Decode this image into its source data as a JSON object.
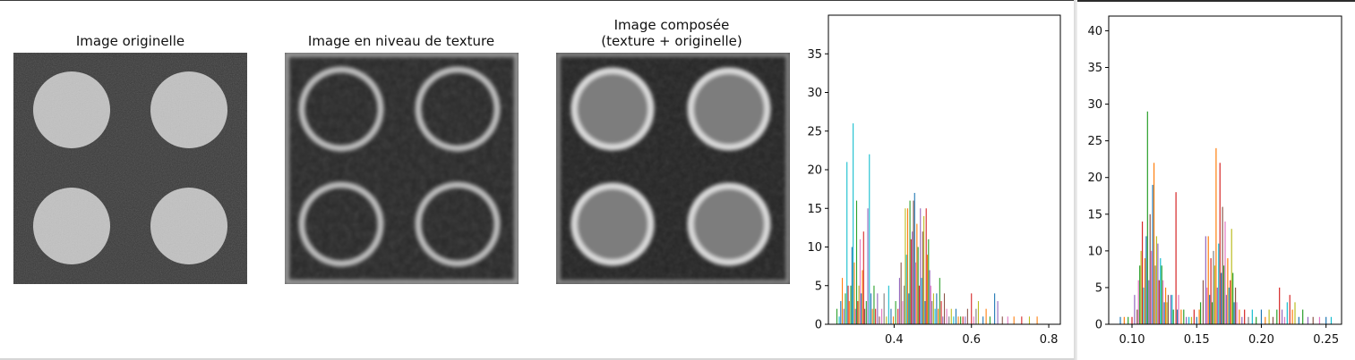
{
  "figure": {
    "panels": [
      {
        "title": "Image originelle"
      },
      {
        "title": "Image en niveau de texture"
      },
      {
        "title": "Image composée\n(texture + originelle)"
      }
    ]
  },
  "chart_data": [
    {
      "type": "bar",
      "xlim": [
        0.23,
        0.83
      ],
      "ylim": [
        0,
        40
      ],
      "x_ticks": [
        0.4,
        0.6,
        0.8
      ],
      "y_ticks": [
        0,
        5,
        10,
        15,
        20,
        25,
        30,
        35
      ],
      "grid": false,
      "bars": [
        {
          "x": 0.252,
          "h": 2,
          "c": "#2ca02c"
        },
        {
          "x": 0.258,
          "h": 1,
          "c": "#17becf"
        },
        {
          "x": 0.262,
          "h": 3,
          "c": "#1f77b4"
        },
        {
          "x": 0.266,
          "h": 6,
          "c": "#ff7f0e"
        },
        {
          "x": 0.27,
          "h": 2,
          "c": "#9467bd"
        },
        {
          "x": 0.274,
          "h": 4,
          "c": "#2ca02c"
        },
        {
          "x": 0.278,
          "h": 21,
          "c": "#17becf"
        },
        {
          "x": 0.281,
          "h": 5,
          "c": "#d62728"
        },
        {
          "x": 0.284,
          "h": 3,
          "c": "#ff7f0e"
        },
        {
          "x": 0.288,
          "h": 5,
          "c": "#2ca02c"
        },
        {
          "x": 0.291,
          "h": 10,
          "c": "#1f77b4"
        },
        {
          "x": 0.294,
          "h": 26,
          "c": "#17becf"
        },
        {
          "x": 0.297,
          "h": 8,
          "c": "#ff7f0e"
        },
        {
          "x": 0.3,
          "h": 2,
          "c": "#9467bd"
        },
        {
          "x": 0.303,
          "h": 16,
          "c": "#2ca02c"
        },
        {
          "x": 0.306,
          "h": 3,
          "c": "#d62728"
        },
        {
          "x": 0.309,
          "h": 5,
          "c": "#bcbd22"
        },
        {
          "x": 0.312,
          "h": 11,
          "c": "#e377c2"
        },
        {
          "x": 0.315,
          "h": 4,
          "c": "#1f77b4"
        },
        {
          "x": 0.318,
          "h": 7,
          "c": "#ff7f0e"
        },
        {
          "x": 0.321,
          "h": 12,
          "c": "#d62728"
        },
        {
          "x": 0.324,
          "h": 2,
          "c": "#8c564b"
        },
        {
          "x": 0.328,
          "h": 3,
          "c": "#2ca02c"
        },
        {
          "x": 0.332,
          "h": 15,
          "c": "#9467bd"
        },
        {
          "x": 0.336,
          "h": 22,
          "c": "#17becf"
        },
        {
          "x": 0.34,
          "h": 4,
          "c": "#1f77b4"
        },
        {
          "x": 0.344,
          "h": 2,
          "c": "#ff7f0e"
        },
        {
          "x": 0.348,
          "h": 5,
          "c": "#2ca02c"
        },
        {
          "x": 0.352,
          "h": 2,
          "c": "#d62728"
        },
        {
          "x": 0.357,
          "h": 4,
          "c": "#9467bd"
        },
        {
          "x": 0.362,
          "h": 1,
          "c": "#8c564b"
        },
        {
          "x": 0.368,
          "h": 2,
          "c": "#e377c2"
        },
        {
          "x": 0.374,
          "h": 4,
          "c": "#7f7f7f"
        },
        {
          "x": 0.38,
          "h": 1,
          "c": "#bcbd22"
        },
        {
          "x": 0.386,
          "h": 5,
          "c": "#17becf"
        },
        {
          "x": 0.392,
          "h": 2,
          "c": "#1f77b4"
        },
        {
          "x": 0.398,
          "h": 1,
          "c": "#ff7f0e"
        },
        {
          "x": 0.404,
          "h": 3,
          "c": "#2ca02c"
        },
        {
          "x": 0.41,
          "h": 2,
          "c": "#d62728"
        },
        {
          "x": 0.414,
          "h": 6,
          "c": "#9467bd"
        },
        {
          "x": 0.418,
          "h": 8,
          "c": "#8c564b"
        },
        {
          "x": 0.422,
          "h": 3,
          "c": "#e377c2"
        },
        {
          "x": 0.426,
          "h": 5,
          "c": "#7f7f7f"
        },
        {
          "x": 0.429,
          "h": 15,
          "c": "#bcbd22"
        },
        {
          "x": 0.432,
          "h": 9,
          "c": "#17becf"
        },
        {
          "x": 0.435,
          "h": 15,
          "c": "#ff7f0e"
        },
        {
          "x": 0.438,
          "h": 4,
          "c": "#1f77b4"
        },
        {
          "x": 0.441,
          "h": 16,
          "c": "#2ca02c"
        },
        {
          "x": 0.444,
          "h": 11,
          "c": "#d62728"
        },
        {
          "x": 0.447,
          "h": 12,
          "c": "#9467bd"
        },
        {
          "x": 0.45,
          "h": 16,
          "c": "#8c564b"
        },
        {
          "x": 0.453,
          "h": 17,
          "c": "#1f77b4"
        },
        {
          "x": 0.456,
          "h": 8,
          "c": "#e377c2"
        },
        {
          "x": 0.459,
          "h": 13,
          "c": "#ff7f0e"
        },
        {
          "x": 0.462,
          "h": 10,
          "c": "#2ca02c"
        },
        {
          "x": 0.465,
          "h": 5,
          "c": "#d62728"
        },
        {
          "x": 0.468,
          "h": 15,
          "c": "#9467bd"
        },
        {
          "x": 0.471,
          "h": 6,
          "c": "#17becf"
        },
        {
          "x": 0.474,
          "h": 12,
          "c": "#8c564b"
        },
        {
          "x": 0.477,
          "h": 14,
          "c": "#bcbd22"
        },
        {
          "x": 0.48,
          "h": 3,
          "c": "#1f77b4"
        },
        {
          "x": 0.483,
          "h": 15,
          "c": "#d62728"
        },
        {
          "x": 0.486,
          "h": 9,
          "c": "#ff7f0e"
        },
        {
          "x": 0.489,
          "h": 11,
          "c": "#2ca02c"
        },
        {
          "x": 0.492,
          "h": 7,
          "c": "#9467bd"
        },
        {
          "x": 0.495,
          "h": 5,
          "c": "#e377c2"
        },
        {
          "x": 0.498,
          "h": 3,
          "c": "#7f7f7f"
        },
        {
          "x": 0.502,
          "h": 4,
          "c": "#bcbd22"
        },
        {
          "x": 0.506,
          "h": 2,
          "c": "#17becf"
        },
        {
          "x": 0.51,
          "h": 4,
          "c": "#1f77b4"
        },
        {
          "x": 0.514,
          "h": 2,
          "c": "#ff7f0e"
        },
        {
          "x": 0.518,
          "h": 6,
          "c": "#2ca02c"
        },
        {
          "x": 0.522,
          "h": 3,
          "c": "#d62728"
        },
        {
          "x": 0.526,
          "h": 1,
          "c": "#9467bd"
        },
        {
          "x": 0.53,
          "h": 4,
          "c": "#8c564b"
        },
        {
          "x": 0.536,
          "h": 2,
          "c": "#e377c2"
        },
        {
          "x": 0.542,
          "h": 1,
          "c": "#7f7f7f"
        },
        {
          "x": 0.548,
          "h": 2,
          "c": "#bcbd22"
        },
        {
          "x": 0.554,
          "h": 1,
          "c": "#17becf"
        },
        {
          "x": 0.56,
          "h": 2,
          "c": "#1f77b4"
        },
        {
          "x": 0.566,
          "h": 1,
          "c": "#ff7f0e"
        },
        {
          "x": 0.572,
          "h": 1,
          "c": "#2ca02c"
        },
        {
          "x": 0.578,
          "h": 1,
          "c": "#d62728"
        },
        {
          "x": 0.584,
          "h": 1,
          "c": "#9467bd"
        },
        {
          "x": 0.59,
          "h": 2,
          "c": "#8c564b"
        },
        {
          "x": 0.6,
          "h": 4,
          "c": "#d62728"
        },
        {
          "x": 0.606,
          "h": 1,
          "c": "#e377c2"
        },
        {
          "x": 0.612,
          "h": 2,
          "c": "#7f7f7f"
        },
        {
          "x": 0.618,
          "h": 3,
          "c": "#bcbd22"
        },
        {
          "x": 0.63,
          "h": 1,
          "c": "#1f77b4"
        },
        {
          "x": 0.638,
          "h": 2,
          "c": "#ff7f0e"
        },
        {
          "x": 0.648,
          "h": 1,
          "c": "#2ca02c"
        },
        {
          "x": 0.66,
          "h": 4,
          "c": "#1f77b4"
        },
        {
          "x": 0.668,
          "h": 3,
          "c": "#9467bd"
        },
        {
          "x": 0.68,
          "h": 1,
          "c": "#8c564b"
        },
        {
          "x": 0.694,
          "h": 1,
          "c": "#e377c2"
        },
        {
          "x": 0.71,
          "h": 1,
          "c": "#ff7f0e"
        },
        {
          "x": 0.73,
          "h": 1,
          "c": "#d62728"
        },
        {
          "x": 0.75,
          "h": 1,
          "c": "#bcbd22"
        },
        {
          "x": 0.77,
          "h": 1,
          "c": "#ff7f0e"
        }
      ]
    },
    {
      "type": "bar",
      "xlim": [
        0.082,
        0.262
      ],
      "ylim": [
        0,
        42
      ],
      "x_ticks": [
        0.1,
        0.15,
        0.2,
        0.25
      ],
      "y_ticks": [
        0,
        5,
        10,
        15,
        20,
        25,
        30,
        35,
        40
      ],
      "grid": false,
      "bars": [
        {
          "x": 0.091,
          "h": 1,
          "c": "#1f77b4"
        },
        {
          "x": 0.094,
          "h": 1,
          "c": "#ff7f0e"
        },
        {
          "x": 0.097,
          "h": 1,
          "c": "#2ca02c"
        },
        {
          "x": 0.1,
          "h": 1,
          "c": "#d62728"
        },
        {
          "x": 0.102,
          "h": 4,
          "c": "#9467bd"
        },
        {
          "x": 0.104,
          "h": 2,
          "c": "#8c564b"
        },
        {
          "x": 0.105,
          "h": 6,
          "c": "#e377c2"
        },
        {
          "x": 0.106,
          "h": 8,
          "c": "#2ca02c"
        },
        {
          "x": 0.107,
          "h": 10,
          "c": "#bcbd22"
        },
        {
          "x": 0.108,
          "h": 14,
          "c": "#d62728"
        },
        {
          "x": 0.109,
          "h": 5,
          "c": "#17becf"
        },
        {
          "x": 0.11,
          "h": 9,
          "c": "#ff7f0e"
        },
        {
          "x": 0.111,
          "h": 12,
          "c": "#1f77b4"
        },
        {
          "x": 0.112,
          "h": 29,
          "c": "#2ca02c"
        },
        {
          "x": 0.113,
          "h": 6,
          "c": "#9467bd"
        },
        {
          "x": 0.114,
          "h": 15,
          "c": "#8c564b"
        },
        {
          "x": 0.115,
          "h": 10,
          "c": "#e377c2"
        },
        {
          "x": 0.116,
          "h": 19,
          "c": "#1f77b4"
        },
        {
          "x": 0.117,
          "h": 22,
          "c": "#ff7f0e"
        },
        {
          "x": 0.118,
          "h": 8,
          "c": "#7f7f7f"
        },
        {
          "x": 0.119,
          "h": 12,
          "c": "#bcbd22"
        },
        {
          "x": 0.12,
          "h": 11,
          "c": "#9467bd"
        },
        {
          "x": 0.121,
          "h": 6,
          "c": "#d62728"
        },
        {
          "x": 0.122,
          "h": 9,
          "c": "#17becf"
        },
        {
          "x": 0.123,
          "h": 8,
          "c": "#2ca02c"
        },
        {
          "x": 0.124,
          "h": 6,
          "c": "#e377c2"
        },
        {
          "x": 0.125,
          "h": 3,
          "c": "#1f77b4"
        },
        {
          "x": 0.126,
          "h": 5,
          "c": "#ff7f0e"
        },
        {
          "x": 0.127,
          "h": 3,
          "c": "#bcbd22"
        },
        {
          "x": 0.128,
          "h": 4,
          "c": "#8c564b"
        },
        {
          "x": 0.13,
          "h": 4,
          "c": "#9467bd"
        },
        {
          "x": 0.131,
          "h": 4,
          "c": "#17becf"
        },
        {
          "x": 0.132,
          "h": 2,
          "c": "#2ca02c"
        },
        {
          "x": 0.134,
          "h": 18,
          "c": "#d62728"
        },
        {
          "x": 0.135,
          "h": 2,
          "c": "#1f77b4"
        },
        {
          "x": 0.136,
          "h": 4,
          "c": "#e377c2"
        },
        {
          "x": 0.138,
          "h": 2,
          "c": "#ff7f0e"
        },
        {
          "x": 0.14,
          "h": 2,
          "c": "#2ca02c"
        },
        {
          "x": 0.142,
          "h": 1,
          "c": "#9467bd"
        },
        {
          "x": 0.144,
          "h": 1,
          "c": "#17becf"
        },
        {
          "x": 0.146,
          "h": 1,
          "c": "#bcbd22"
        },
        {
          "x": 0.148,
          "h": 2,
          "c": "#d62728"
        },
        {
          "x": 0.15,
          "h": 1,
          "c": "#1f77b4"
        },
        {
          "x": 0.152,
          "h": 2,
          "c": "#ff7f0e"
        },
        {
          "x": 0.153,
          "h": 3,
          "c": "#2ca02c"
        },
        {
          "x": 0.155,
          "h": 6,
          "c": "#8c564b"
        },
        {
          "x": 0.157,
          "h": 12,
          "c": "#9467bd"
        },
        {
          "x": 0.158,
          "h": 5,
          "c": "#e377c2"
        },
        {
          "x": 0.159,
          "h": 12,
          "c": "#ff7f0e"
        },
        {
          "x": 0.16,
          "h": 4,
          "c": "#1f77b4"
        },
        {
          "x": 0.161,
          "h": 9,
          "c": "#d62728"
        },
        {
          "x": 0.162,
          "h": 3,
          "c": "#2ca02c"
        },
        {
          "x": 0.163,
          "h": 10,
          "c": "#7f7f7f"
        },
        {
          "x": 0.164,
          "h": 8,
          "c": "#bcbd22"
        },
        {
          "x": 0.165,
          "h": 24,
          "c": "#ff7f0e"
        },
        {
          "x": 0.166,
          "h": 5,
          "c": "#9467bd"
        },
        {
          "x": 0.167,
          "h": 11,
          "c": "#17becf"
        },
        {
          "x": 0.168,
          "h": 22,
          "c": "#d62728"
        },
        {
          "x": 0.169,
          "h": 7,
          "c": "#1f77b4"
        },
        {
          "x": 0.17,
          "h": 16,
          "c": "#8c564b"
        },
        {
          "x": 0.171,
          "h": 8,
          "c": "#2ca02c"
        },
        {
          "x": 0.172,
          "h": 14,
          "c": "#e377c2"
        },
        {
          "x": 0.173,
          "h": 4,
          "c": "#9467bd"
        },
        {
          "x": 0.174,
          "h": 9,
          "c": "#ff7f0e"
        },
        {
          "x": 0.175,
          "h": 5,
          "c": "#17becf"
        },
        {
          "x": 0.176,
          "h": 6,
          "c": "#d62728"
        },
        {
          "x": 0.177,
          "h": 13,
          "c": "#bcbd22"
        },
        {
          "x": 0.178,
          "h": 7,
          "c": "#2ca02c"
        },
        {
          "x": 0.179,
          "h": 3,
          "c": "#1f77b4"
        },
        {
          "x": 0.18,
          "h": 5,
          "c": "#8c564b"
        },
        {
          "x": 0.181,
          "h": 3,
          "c": "#e377c2"
        },
        {
          "x": 0.183,
          "h": 2,
          "c": "#ff7f0e"
        },
        {
          "x": 0.185,
          "h": 1,
          "c": "#9467bd"
        },
        {
          "x": 0.187,
          "h": 2,
          "c": "#d62728"
        },
        {
          "x": 0.19,
          "h": 1,
          "c": "#7f7f7f"
        },
        {
          "x": 0.193,
          "h": 2,
          "c": "#17becf"
        },
        {
          "x": 0.196,
          "h": 1,
          "c": "#2ca02c"
        },
        {
          "x": 0.2,
          "h": 2,
          "c": "#1f77b4"
        },
        {
          "x": 0.203,
          "h": 1,
          "c": "#ff7f0e"
        },
        {
          "x": 0.206,
          "h": 2,
          "c": "#bcbd22"
        },
        {
          "x": 0.209,
          "h": 1,
          "c": "#8c564b"
        },
        {
          "x": 0.212,
          "h": 2,
          "c": "#2ca02c"
        },
        {
          "x": 0.214,
          "h": 5,
          "c": "#d62728"
        },
        {
          "x": 0.216,
          "h": 2,
          "c": "#9467bd"
        },
        {
          "x": 0.218,
          "h": 1,
          "c": "#e377c2"
        },
        {
          "x": 0.22,
          "h": 3,
          "c": "#17becf"
        },
        {
          "x": 0.222,
          "h": 4,
          "c": "#d62728"
        },
        {
          "x": 0.224,
          "h": 2,
          "c": "#ff7f0e"
        },
        {
          "x": 0.226,
          "h": 3,
          "c": "#bcbd22"
        },
        {
          "x": 0.229,
          "h": 1,
          "c": "#1f77b4"
        },
        {
          "x": 0.232,
          "h": 2,
          "c": "#2ca02c"
        },
        {
          "x": 0.236,
          "h": 1,
          "c": "#9467bd"
        },
        {
          "x": 0.24,
          "h": 1,
          "c": "#8c564b"
        },
        {
          "x": 0.245,
          "h": 1,
          "c": "#e377c2"
        },
        {
          "x": 0.25,
          "h": 1,
          "c": "#1f77b4"
        },
        {
          "x": 0.254,
          "h": 1,
          "c": "#17becf"
        }
      ]
    }
  ]
}
